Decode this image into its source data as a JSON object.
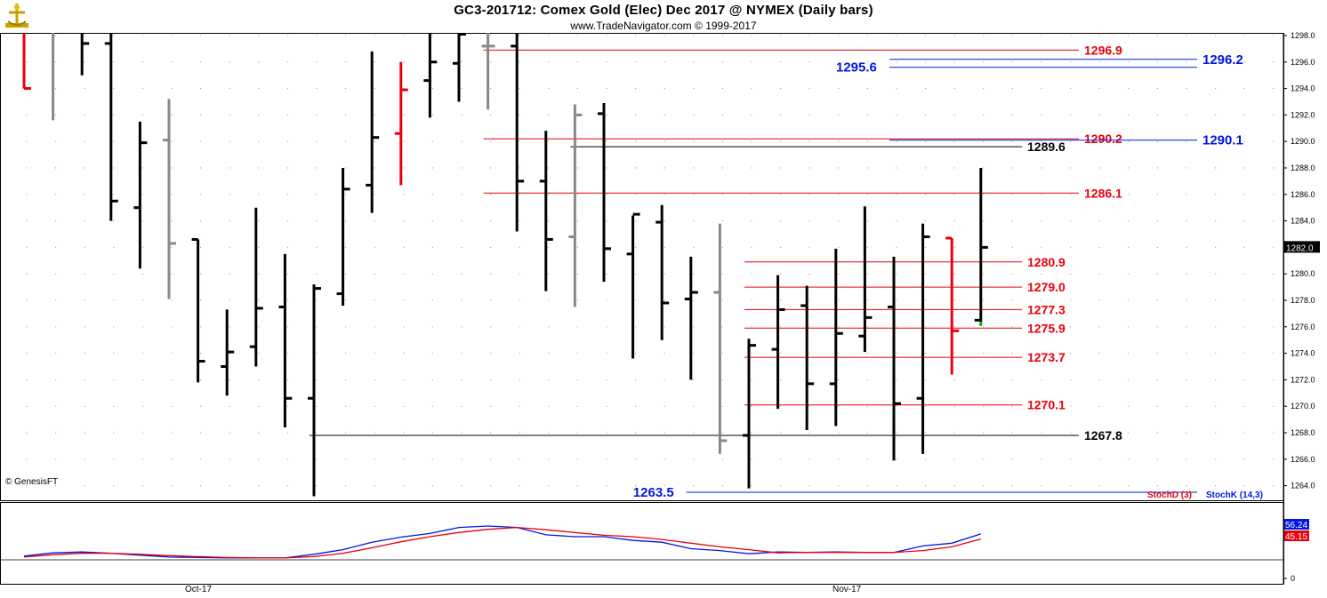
{
  "header": {
    "title": "GC3-201712:  Comex Gold (Elec) Dec 2017 @ NYMEX  (Daily bars)",
    "subtitle": "www.TradeNavigator.com © 1999-2017"
  },
  "footer": {
    "copyright": "© GenesisFT"
  },
  "colors": {
    "up": "#000000",
    "down_red": "#e8000b",
    "gray": "#888888",
    "blue": "#0018e0",
    "red": "#e8000b",
    "green": "#00b000"
  },
  "chart_data": [
    {
      "type": "ohlc",
      "y_ticks": [
        1264,
        1266,
        1268,
        1270,
        1272,
        1274,
        1276,
        1278,
        1280,
        1282,
        1284,
        1286,
        1288,
        1290,
        1292,
        1294,
        1296,
        1298
      ],
      "ylim": [
        1262.9,
        1298.2
      ],
      "x_labels": [
        "Oct-17",
        "Nov-17"
      ],
      "last_price_label": "1282.0",
      "bars": [
        {
          "c": "red",
          "high": 1298.2,
          "low": 1294.0,
          "open": null,
          "close": 1294.0
        },
        {
          "c": "gray",
          "high": 1298.2,
          "low": 1291.6,
          "open": null,
          "close": null
        },
        {
          "c": "black",
          "high": 1298.2,
          "low": 1295.0,
          "open": null,
          "close": 1297.4
        },
        {
          "c": "black",
          "high": 1298.2,
          "low": 1284.0,
          "open": 1297.4,
          "close": 1285.5
        },
        {
          "c": "black",
          "high": 1291.5,
          "low": 1280.4,
          "open": 1285.0,
          "close": 1289.9
        },
        {
          "c": "gray",
          "high": 1293.2,
          "low": 1278.1,
          "open": 1290.1,
          "close": 1282.3
        },
        {
          "c": "black",
          "high": 1282.6,
          "low": 1271.8,
          "open": 1282.6,
          "close": 1273.4
        },
        {
          "c": "black",
          "high": 1277.3,
          "low": 1270.8,
          "open": 1273.0,
          "close": 1274.1
        },
        {
          "c": "black",
          "high": 1285.0,
          "low": 1273.0,
          "open": 1274.5,
          "close": 1277.4
        },
        {
          "c": "black",
          "high": 1281.5,
          "low": 1268.4,
          "open": 1277.5,
          "close": 1270.6
        },
        {
          "c": "black",
          "high": 1279.2,
          "low": 1263.2,
          "open": 1270.6,
          "close": 1278.9
        },
        {
          "c": "black",
          "high": 1288.0,
          "low": 1277.6,
          "open": 1278.5,
          "close": 1286.4
        },
        {
          "c": "black",
          "high": 1296.8,
          "low": 1284.6,
          "open": 1286.7,
          "close": 1290.3
        },
        {
          "c": "red",
          "high": 1296.0,
          "low": 1286.7,
          "open": 1290.6,
          "close": 1293.9
        },
        {
          "c": "black",
          "high": 1298.2,
          "low": 1291.8,
          "open": 1294.6,
          "close": 1296.0
        },
        {
          "c": "black",
          "high": 1298.2,
          "low": 1293.0,
          "open": 1295.9,
          "close": 1298.1
        },
        {
          "c": "gray",
          "high": 1298.2,
          "low": 1292.4,
          "open": 1297.2,
          "close": 1297.2
        },
        {
          "c": "black",
          "high": 1298.2,
          "low": 1283.2,
          "open": 1297.2,
          "close": 1287.0
        },
        {
          "c": "black",
          "high": 1290.8,
          "low": 1278.7,
          "open": 1287.0,
          "close": 1282.6
        },
        {
          "c": "gray",
          "high": 1292.8,
          "low": 1277.5,
          "open": 1282.8,
          "close": 1292.0
        },
        {
          "c": "black",
          "high": 1292.9,
          "low": 1279.4,
          "open": 1292.1,
          "close": 1281.9
        },
        {
          "c": "black",
          "high": 1284.4,
          "low": 1273.6,
          "open": 1281.5,
          "close": 1284.5
        },
        {
          "c": "black",
          "high": 1285.2,
          "low": 1275.0,
          "open": 1283.9,
          "close": 1277.8
        },
        {
          "c": "black",
          "high": 1281.3,
          "low": 1272.0,
          "open": 1278.1,
          "close": 1278.6
        },
        {
          "c": "gray",
          "high": 1283.8,
          "low": 1266.4,
          "open": 1278.6,
          "close": 1267.4
        },
        {
          "c": "black",
          "high": 1275.1,
          "low": 1263.8,
          "open": 1267.8,
          "close": 1274.6
        },
        {
          "c": "black",
          "high": 1279.9,
          "low": 1269.8,
          "open": 1274.3,
          "close": 1277.3
        },
        {
          "c": "black",
          "high": 1279.1,
          "low": 1268.2,
          "open": 1277.6,
          "close": 1271.7
        },
        {
          "c": "black",
          "high": 1281.9,
          "low": 1268.5,
          "open": 1271.7,
          "close": 1275.5
        },
        {
          "c": "black",
          "high": 1285.1,
          "low": 1274.1,
          "open": 1275.3,
          "close": 1276.7
        },
        {
          "c": "black",
          "high": 1281.3,
          "low": 1265.9,
          "open": 1277.5,
          "close": 1270.2
        },
        {
          "c": "black",
          "high": 1283.8,
          "low": 1266.4,
          "open": 1270.6,
          "close": 1282.8
        },
        {
          "c": "red",
          "high": 1282.7,
          "low": 1272.4,
          "open": 1282.7,
          "close": 1275.7
        },
        {
          "c": "black",
          "high": 1288.0,
          "low": 1276.4,
          "open": 1276.5,
          "close": 1282.0
        }
      ],
      "level_lines": [
        {
          "value": 1296.9,
          "label": "1296.9",
          "color": "red",
          "from": 16,
          "to": 1213
        },
        {
          "value": 1290.2,
          "label": "1290.2",
          "color": "red",
          "from": 16,
          "to": 1213
        },
        {
          "value": 1286.1,
          "label": "1286.1",
          "color": "red",
          "from": 16,
          "to": 1213
        },
        {
          "value": 1289.6,
          "label": "1289.6",
          "color": "black",
          "from": 19,
          "to": 1149
        },
        {
          "value": 1267.8,
          "label": "1267.8",
          "color": "black",
          "from": 10,
          "to": 1213
        },
        {
          "value": 1280.9,
          "label": "1280.9",
          "color": "red",
          "from": 25,
          "to": 1149
        },
        {
          "value": 1279.0,
          "label": "1279.0",
          "color": "red",
          "from": 25,
          "to": 1149
        },
        {
          "value": 1277.3,
          "label": "1277.3",
          "color": "red",
          "from": 25,
          "to": 1149
        },
        {
          "value": 1275.9,
          "label": "1275.9",
          "color": "red",
          "from": 25,
          "to": 1149
        },
        {
          "value": 1273.7,
          "label": "1273.7",
          "color": "red",
          "from": 25,
          "to": 1149
        },
        {
          "value": 1270.1,
          "label": "1270.1",
          "color": "red",
          "from": 25,
          "to": 1149
        },
        {
          "value": 1296.2,
          "label": "1296.2",
          "color": "blue",
          "from": 30,
          "to": 1346
        },
        {
          "value": 1295.6,
          "label": "1295.6",
          "color": "blue",
          "from": 30,
          "to": 1346,
          "label_left": true
        },
        {
          "value": 1290.1,
          "label": "1290.1",
          "color": "blue",
          "from": 30,
          "to": 1346
        },
        {
          "value": 1263.5,
          "label": "1263.5",
          "color": "blue",
          "from": 23,
          "to": 1346,
          "label_left": true
        }
      ]
    },
    {
      "type": "line",
      "title": "",
      "ylim": [
        0,
        100
      ],
      "y_ticks": [
        0
      ],
      "legend": [
        {
          "name": "StochD (3)",
          "color": "red"
        },
        {
          "name": "StochK (14,3)",
          "color": "blue"
        }
      ],
      "last_values": {
        "StochK": "56.24",
        "StochD": "45.15"
      },
      "series": [
        {
          "name": "StochK (14,3)",
          "color": "blue",
          "values": [
            8,
            15,
            17,
            14,
            10,
            6,
            5,
            4,
            4,
            4,
            12,
            22,
            38,
            49,
            57,
            70,
            73,
            70,
            54,
            50,
            50,
            42,
            38,
            24,
            20,
            13,
            17,
            16,
            17,
            16,
            16,
            30,
            36,
            56
          ]
        },
        {
          "name": "StochD (3)",
          "color": "red",
          "values": [
            6,
            11,
            14,
            14,
            12,
            9,
            7,
            5,
            4,
            4,
            7,
            14,
            26,
            39,
            50,
            59,
            66,
            70,
            65,
            59,
            53,
            50,
            44,
            36,
            28,
            22,
            15,
            16,
            16,
            16,
            16,
            20,
            28,
            45
          ]
        }
      ]
    }
  ]
}
